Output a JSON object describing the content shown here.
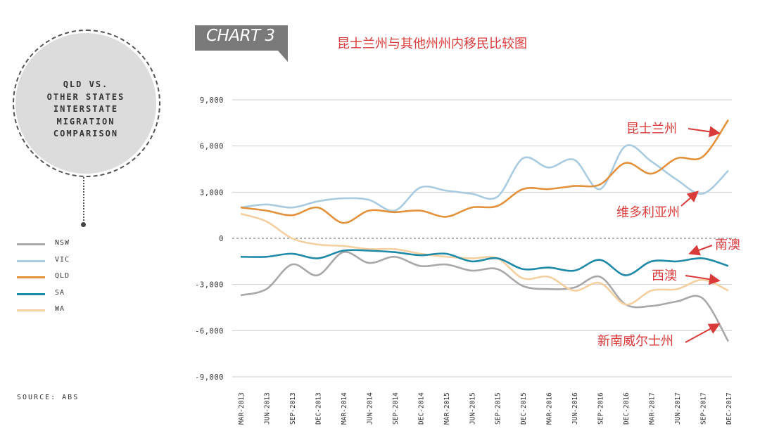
{
  "sidebar": {
    "title": "QLD VS.\nOTHER STATES\nINTERSTATE\nMIGRATION\nCOMPARISON",
    "source": "SOURCE: ABS"
  },
  "header": {
    "chart_tag": "CHART 3",
    "title_cn": "昆士兰州与其他州州内移民比较图"
  },
  "colors": {
    "NSW": "#a9a7a8",
    "VIC": "#a9cbe0",
    "QLD": "#e3913a",
    "SA": "#1f8aa8",
    "WA": "#f4cfa0",
    "annotation": "#d93a3a",
    "tag_bg": "#7a7a7a"
  },
  "chart_data": {
    "type": "line",
    "x": [
      "MAR-2013",
      "JUN-2013",
      "SEP-2013",
      "DEC-2013",
      "MAR-2014",
      "JUN-2014",
      "SEP-2014",
      "DEC-2014",
      "MAR-2015",
      "JUN-2015",
      "SEP-2015",
      "DEC-2015",
      "MAR-2016",
      "JUN-2016",
      "SEP-2016",
      "DEC-2016",
      "MAR-2017",
      "JUN-2017",
      "SEP-2017",
      "DEC-2017"
    ],
    "yticks": [
      "9,000",
      "6,000",
      "3,000",
      "0",
      "-3,000",
      "-6,000",
      "-9,000"
    ],
    "ylim": [
      -9000,
      9000
    ],
    "grid": true,
    "series": [
      {
        "name": "NSW",
        "values": [
          -3700,
          -3300,
          -1700,
          -2400,
          -900,
          -1600,
          -1200,
          -1800,
          -1700,
          -2100,
          -2000,
          -3100,
          -3300,
          -3200,
          -2500,
          -4300,
          -4400,
          -4100,
          -3900,
          -6700
        ]
      },
      {
        "name": "VIC",
        "values": [
          2000,
          2200,
          2000,
          2400,
          2600,
          2500,
          1800,
          3300,
          3100,
          2900,
          2700,
          5200,
          4600,
          5100,
          3200,
          6000,
          5000,
          3800,
          2900,
          4400
        ]
      },
      {
        "name": "QLD",
        "values": [
          2000,
          1800,
          1500,
          2000,
          1000,
          1800,
          1700,
          1800,
          1400,
          2000,
          2100,
          3200,
          3200,
          3400,
          3500,
          4900,
          4200,
          5200,
          5300,
          7700
        ]
      },
      {
        "name": "SA",
        "values": [
          -1200,
          -1200,
          -1000,
          -1300,
          -800,
          -800,
          -900,
          -1100,
          -1000,
          -1500,
          -1300,
          -2000,
          -1900,
          -2100,
          -1400,
          -2400,
          -1500,
          -1500,
          -1300,
          -1800
        ]
      },
      {
        "name": "WA",
        "values": [
          1600,
          1100,
          0,
          -400,
          -500,
          -700,
          -700,
          -1000,
          -1200,
          -1300,
          -1300,
          -2600,
          -2500,
          -3400,
          -2900,
          -4300,
          -3400,
          -3300,
          -2700,
          -3400
        ]
      }
    ],
    "annotations": [
      {
        "text": "昆士兰州",
        "series": "QLD"
      },
      {
        "text": "维多利亚州",
        "series": "VIC"
      },
      {
        "text": "南澳",
        "series": "SA"
      },
      {
        "text": "西澳",
        "series": "WA"
      },
      {
        "text": "新南威尔士州",
        "series": "NSW"
      }
    ]
  }
}
